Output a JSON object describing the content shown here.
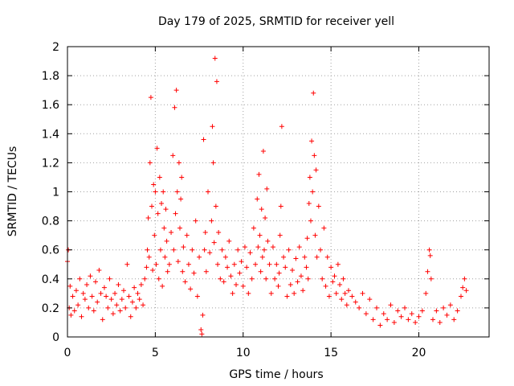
{
  "chart_data": {
    "type": "scatter",
    "title": "Day 179 of 2025, SRMTID for receiver yell",
    "xlabel": "GPS time / hours",
    "ylabel": "SRMTID / TECUs",
    "xlim": [
      0,
      24
    ],
    "ylim": [
      0,
      2
    ],
    "xticks": [
      0,
      5,
      10,
      15,
      20
    ],
    "xtick_labels": [
      "0",
      "5",
      "10",
      "15",
      "20"
    ],
    "yticks": [
      0,
      0.2,
      0.4,
      0.6,
      0.8,
      1,
      1.2,
      1.4,
      1.6,
      1.8,
      2
    ],
    "ytick_labels": [
      "0",
      "0.2",
      "0.4",
      "0.6",
      "0.8",
      "1",
      "1.2",
      "1.4",
      "1.6",
      "1.8",
      "2"
    ],
    "grid": true,
    "marker": "+",
    "color": "#ff0000",
    "series": [
      {
        "name": "SRMTID",
        "x": [
          0.0,
          0.05,
          0.1,
          0.15,
          0.2,
          0.3,
          0.4,
          0.5,
          0.6,
          0.7,
          0.8,
          0.9,
          1.0,
          1.1,
          1.2,
          1.3,
          1.4,
          1.5,
          1.6,
          1.7,
          1.8,
          1.9,
          2.0,
          2.1,
          2.2,
          2.3,
          2.4,
          2.5,
          2.6,
          2.7,
          2.8,
          2.9,
          3.0,
          3.1,
          3.2,
          3.3,
          3.4,
          3.5,
          3.6,
          3.7,
          3.8,
          3.9,
          4.0,
          4.1,
          4.2,
          4.3,
          4.4,
          4.5,
          4.55,
          4.6,
          4.65,
          4.7,
          4.75,
          4.8,
          4.85,
          4.9,
          4.95,
          5.0,
          5.05,
          5.1,
          5.15,
          5.2,
          5.25,
          5.3,
          5.35,
          5.4,
          5.45,
          5.5,
          5.55,
          5.6,
          5.65,
          5.7,
          5.8,
          5.9,
          6.0,
          6.05,
          6.1,
          6.15,
          6.2,
          6.25,
          6.3,
          6.35,
          6.4,
          6.45,
          6.5,
          6.55,
          6.6,
          6.7,
          6.8,
          6.9,
          7.0,
          7.1,
          7.2,
          7.3,
          7.4,
          7.5,
          7.6,
          7.65,
          7.7,
          7.75,
          7.8,
          7.85,
          7.9,
          8.0,
          8.1,
          8.2,
          8.25,
          8.3,
          8.35,
          8.4,
          8.45,
          8.5,
          8.55,
          8.6,
          8.7,
          8.8,
          8.9,
          9.0,
          9.1,
          9.2,
          9.3,
          9.4,
          9.5,
          9.6,
          9.7,
          9.8,
          9.9,
          10.0,
          10.1,
          10.2,
          10.3,
          10.4,
          10.5,
          10.6,
          10.7,
          10.8,
          10.85,
          10.9,
          10.95,
          11.0,
          11.05,
          11.1,
          11.15,
          11.2,
          11.25,
          11.3,
          11.35,
          11.4,
          11.5,
          11.6,
          11.7,
          11.8,
          11.9,
          12.0,
          12.05,
          12.1,
          12.15,
          12.2,
          12.3,
          12.4,
          12.5,
          12.6,
          12.7,
          12.8,
          12.9,
          13.0,
          13.1,
          13.2,
          13.3,
          13.4,
          13.5,
          13.6,
          13.65,
          13.7,
          13.75,
          13.8,
          13.85,
          13.9,
          13.95,
          14.0,
          14.05,
          14.1,
          14.15,
          14.2,
          14.3,
          14.4,
          14.5,
          14.6,
          14.7,
          14.8,
          14.9,
          15.0,
          15.1,
          15.2,
          15.3,
          15.4,
          15.5,
          15.6,
          15.7,
          15.8,
          15.9,
          16.0,
          16.2,
          16.4,
          16.6,
          16.8,
          17.0,
          17.2,
          17.4,
          17.6,
          17.8,
          18.0,
          18.2,
          18.4,
          18.6,
          18.8,
          19.0,
          19.2,
          19.4,
          19.6,
          19.8,
          20.0,
          20.2,
          20.4,
          20.5,
          20.6,
          20.65,
          20.7,
          20.8,
          21.0,
          21.2,
          21.4,
          21.6,
          21.8,
          22.0,
          22.2,
          22.4,
          22.5,
          22.6,
          22.7
        ],
        "y": [
          0.52,
          0.6,
          0.2,
          0.35,
          0.15,
          0.28,
          0.18,
          0.32,
          0.22,
          0.4,
          0.14,
          0.3,
          0.26,
          0.36,
          0.2,
          0.42,
          0.28,
          0.18,
          0.38,
          0.24,
          0.46,
          0.3,
          0.12,
          0.34,
          0.28,
          0.2,
          0.4,
          0.26,
          0.16,
          0.3,
          0.22,
          0.36,
          0.18,
          0.26,
          0.32,
          0.2,
          0.5,
          0.28,
          0.14,
          0.24,
          0.34,
          0.2,
          0.3,
          0.26,
          0.36,
          0.22,
          0.4,
          0.48,
          0.6,
          0.82,
          0.55,
          1.2,
          1.65,
          0.9,
          0.46,
          1.05,
          0.7,
          1.0,
          0.5,
          1.3,
          0.85,
          0.4,
          1.1,
          0.6,
          0.92,
          0.35,
          1.0,
          0.75,
          0.55,
          0.88,
          0.66,
          0.45,
          0.5,
          0.72,
          1.25,
          0.6,
          1.58,
          0.85,
          1.7,
          1.0,
          0.52,
          1.2,
          0.75,
          0.95,
          1.1,
          0.45,
          0.62,
          0.38,
          0.7,
          0.5,
          0.33,
          0.6,
          0.44,
          0.8,
          0.28,
          0.55,
          0.05,
          0.02,
          0.15,
          1.36,
          0.6,
          0.72,
          0.45,
          1.0,
          0.58,
          0.8,
          1.45,
          1.2,
          0.65,
          1.92,
          0.9,
          1.76,
          0.5,
          0.72,
          0.4,
          0.6,
          0.38,
          0.55,
          0.48,
          0.66,
          0.42,
          0.3,
          0.5,
          0.36,
          0.6,
          0.44,
          0.52,
          0.35,
          0.62,
          0.48,
          0.3,
          0.58,
          0.4,
          0.75,
          0.5,
          0.95,
          0.62,
          1.12,
          0.7,
          0.45,
          0.88,
          0.55,
          1.28,
          0.6,
          0.82,
          0.4,
          1.02,
          0.66,
          0.5,
          0.3,
          0.62,
          0.4,
          0.5,
          0.35,
          0.44,
          0.7,
          0.9,
          1.45,
          0.55,
          0.48,
          0.28,
          0.6,
          0.36,
          0.46,
          0.3,
          0.54,
          0.38,
          0.62,
          0.42,
          0.32,
          0.55,
          0.48,
          0.68,
          0.4,
          0.92,
          1.1,
          0.8,
          1.35,
          1.0,
          1.68,
          1.25,
          0.7,
          1.15,
          0.55,
          0.9,
          0.6,
          0.4,
          0.75,
          0.35,
          0.55,
          0.28,
          0.48,
          0.38,
          0.42,
          0.3,
          0.5,
          0.36,
          0.26,
          0.4,
          0.3,
          0.22,
          0.32,
          0.28,
          0.24,
          0.2,
          0.3,
          0.16,
          0.26,
          0.12,
          0.2,
          0.08,
          0.16,
          0.12,
          0.22,
          0.1,
          0.18,
          0.14,
          0.2,
          0.12,
          0.16,
          0.1,
          0.14,
          0.18,
          0.3,
          0.45,
          0.6,
          0.56,
          0.4,
          0.12,
          0.18,
          0.1,
          0.2,
          0.15,
          0.22,
          0.12,
          0.18,
          0.28,
          0.34,
          0.4,
          0.32
        ]
      }
    ]
  }
}
